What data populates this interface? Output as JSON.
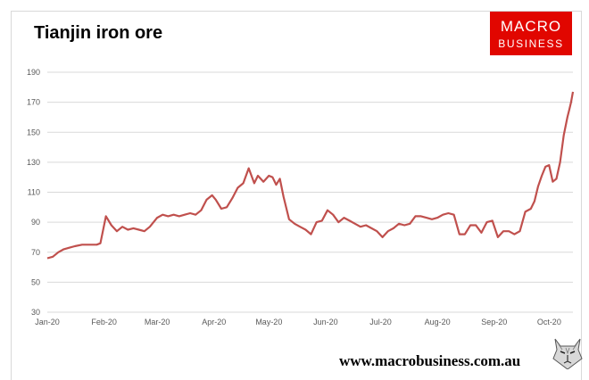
{
  "chart_data": {
    "type": "line",
    "title": "Tianjin iron ore",
    "xlabel": "",
    "ylabel": "",
    "ylim": [
      30,
      190
    ],
    "yticks": [
      30,
      50,
      70,
      90,
      110,
      130,
      150,
      170,
      190
    ],
    "xticks": [
      "Jan-20",
      "Feb-20",
      "Mar-20",
      "Apr-20",
      "May-20",
      "Jun-20",
      "Jul-20",
      "Aug-20",
      "Sep-20",
      "Oct-20"
    ],
    "xlim": [
      "2020-01-01",
      "2020-10-14"
    ],
    "grid": "horizontal",
    "legend": "none",
    "series_color": "#c0504d",
    "series": [
      {
        "x": [
          "2020-01-01",
          "2020-01-04",
          "2020-01-07",
          "2020-01-10",
          "2020-01-13",
          "2020-01-16",
          "2020-01-20",
          "2020-01-24",
          "2020-01-28",
          "2020-01-30",
          "2020-02-02",
          "2020-02-05",
          "2020-02-08",
          "2020-02-11",
          "2020-02-14",
          "2020-02-17",
          "2020-02-20",
          "2020-02-23",
          "2020-02-26",
          "2020-03-01",
          "2020-03-04",
          "2020-03-07",
          "2020-03-10",
          "2020-03-13",
          "2020-03-16",
          "2020-03-19",
          "2020-03-22",
          "2020-03-25",
          "2020-03-28",
          "2020-03-31",
          "2020-04-02",
          "2020-04-05",
          "2020-04-08",
          "2020-04-11",
          "2020-04-14",
          "2020-04-17",
          "2020-04-20",
          "2020-04-23",
          "2020-04-25",
          "2020-04-28",
          "2020-05-01",
          "2020-05-03",
          "2020-05-05",
          "2020-05-07",
          "2020-05-09",
          "2020-05-12",
          "2020-05-15",
          "2020-05-18",
          "2020-05-21",
          "2020-05-24",
          "2020-05-27",
          "2020-05-30",
          "2020-06-02",
          "2020-06-05",
          "2020-06-08",
          "2020-06-11",
          "2020-06-14",
          "2020-06-17",
          "2020-06-20",
          "2020-06-23",
          "2020-06-26",
          "2020-06-29",
          "2020-07-02",
          "2020-07-05",
          "2020-07-08",
          "2020-07-11",
          "2020-07-14",
          "2020-07-17",
          "2020-07-20",
          "2020-07-23",
          "2020-07-26",
          "2020-07-29",
          "2020-08-01",
          "2020-08-04",
          "2020-08-07",
          "2020-08-10",
          "2020-08-13",
          "2020-08-16",
          "2020-08-19",
          "2020-08-22",
          "2020-08-25",
          "2020-08-28",
          "2020-08-31",
          "2020-09-03",
          "2020-09-06",
          "2020-09-09",
          "2020-09-12",
          "2020-09-15",
          "2020-09-18",
          "2020-09-21",
          "2020-09-23",
          "2020-09-25",
          "2020-09-27",
          "2020-09-29",
          "2020-10-01",
          "2020-10-03",
          "2020-10-05",
          "2020-10-07",
          "2020-10-09",
          "2020-10-11",
          "2020-10-12",
          "2020-10-13",
          "2020-10-14"
        ],
        "values": [
          66,
          67,
          70,
          72,
          73,
          74,
          75,
          75,
          75,
          76,
          94,
          88,
          84,
          87,
          85,
          86,
          85,
          84,
          87,
          93,
          95,
          94,
          95,
          94,
          95,
          96,
          95,
          98,
          105,
          108,
          105,
          99,
          100,
          106,
          113,
          116,
          126,
          116,
          121,
          117,
          121,
          120,
          115,
          119,
          107,
          92,
          89,
          87,
          85,
          82,
          90,
          91,
          98,
          95,
          90,
          93,
          91,
          89,
          87,
          88,
          86,
          84,
          80,
          84,
          86,
          89,
          88,
          89,
          94,
          94,
          93,
          92,
          93,
          95,
          96,
          95,
          82,
          82,
          88,
          88,
          83,
          90,
          91,
          80,
          84,
          84,
          82,
          84,
          97,
          99,
          104,
          114,
          121,
          127,
          128,
          117,
          119,
          130,
          148,
          160,
          165,
          170,
          177
        ]
      }
    ]
  },
  "footer": {
    "url": "www.macrobusiness.com.au"
  },
  "logo": {
    "line1": "MACRO",
    "line2": "BUSINESS"
  },
  "icons": {
    "corner": "wolf-icon"
  }
}
